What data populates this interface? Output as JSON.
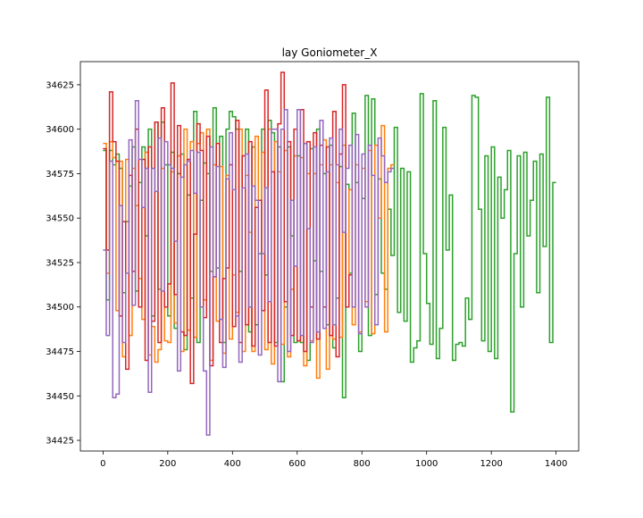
{
  "chart_data": {
    "type": "line",
    "title": "lay Goniometer_X",
    "xlabel": "",
    "ylabel": "",
    "xlim": [
      -70,
      1470
    ],
    "ylim": [
      34419,
      34438
    ],
    "ylim_note": "",
    "x_ticks": [
      0,
      200,
      400,
      600,
      800,
      1000,
      1200,
      1400
    ],
    "y_ticks": [
      34425,
      34450,
      34475,
      34500,
      34525,
      34550,
      34575,
      34600,
      34625
    ],
    "grid": false,
    "legend": "none",
    "series": [
      {
        "color": "#2ca02c",
        "x": [
          0,
          10,
          20,
          30,
          40,
          50,
          60,
          70,
          80,
          90,
          100,
          110,
          120,
          130,
          140,
          150,
          160,
          170,
          180,
          190,
          200,
          210,
          220,
          230,
          240,
          250,
          260,
          270,
          280,
          290,
          300,
          310,
          320,
          330,
          340,
          350,
          360,
          370,
          380,
          390,
          400,
          410,
          420,
          430,
          440,
          450,
          460,
          470,
          480,
          490,
          500,
          510,
          520,
          530,
          540,
          550,
          560,
          570,
          580,
          590,
          600,
          610,
          620,
          630,
          640,
          650,
          660,
          670,
          680,
          690,
          700,
          710,
          720,
          730,
          740,
          750,
          760,
          770,
          780,
          790,
          800,
          810,
          820,
          830,
          840,
          850,
          860,
          870,
          880,
          890,
          900,
          910,
          920,
          930,
          940,
          950,
          960,
          970,
          980,
          990,
          1000,
          1010,
          1020,
          1030,
          1040,
          1050,
          1060,
          1070,
          1080,
          1090,
          1100,
          1110,
          1120,
          1130,
          1140,
          1150,
          1160,
          1170,
          1180,
          1190,
          1200,
          1210,
          1220,
          1230,
          1240,
          1250,
          1260,
          1270,
          1280,
          1290,
          1300,
          1310,
          1320,
          1330,
          1340,
          1350,
          1360,
          1370,
          1380,
          1390
        ],
        "y": [
          34588,
          34504,
          34588,
          34580,
          34586,
          34578,
          34508,
          34548,
          34568,
          34590,
          34509,
          34570,
          34590,
          34540,
          34600,
          34495,
          34604,
          34510,
          34604,
          34580,
          34495,
          34587,
          34488,
          34575,
          34586,
          34476,
          34563,
          34505,
          34610,
          34480,
          34560,
          34581,
          34575,
          34520,
          34612,
          34522,
          34596,
          34480,
          34600,
          34610,
          34607,
          34600,
          34520,
          34585,
          34600,
          34486,
          34590,
          34490,
          34530,
          34600,
          34518,
          34605,
          34598,
          34480,
          34590,
          34458,
          34500,
          34590,
          34540,
          34480,
          34585,
          34480,
          34592,
          34470,
          34589,
          34526,
          34600,
          34520,
          34575,
          34490,
          34591,
          34477,
          34505,
          34579,
          34449,
          34569,
          34519,
          34609,
          34570,
          34475,
          34561,
          34619,
          34484,
          34617,
          34507,
          34572,
          34519,
          34510,
          34555,
          34529,
          34601,
          34497,
          34578,
          34492,
          34576,
          34469,
          34477,
          34481,
          34620,
          34530,
          34502,
          34479,
          34616,
          34471,
          34488,
          34601,
          34532,
          34563,
          34470,
          34479,
          34480,
          34478,
          34505,
          34493,
          34619,
          34618,
          34555,
          34481,
          34585,
          34475,
          34590,
          34471,
          34573,
          34550,
          34566,
          34588,
          34441,
          34530,
          34585,
          34500,
          34587,
          34540,
          34560,
          34582,
          34508,
          34586,
          34534,
          34618,
          34480,
          34570
        ]
      },
      {
        "color": "#ff7f0e",
        "x": [
          0,
          10,
          20,
          30,
          40,
          50,
          60,
          70,
          80,
          90,
          100,
          110,
          120,
          130,
          140,
          150,
          160,
          170,
          180,
          190,
          200,
          210,
          220,
          230,
          240,
          250,
          260,
          270,
          280,
          290,
          300,
          310,
          320,
          330,
          340,
          350,
          360,
          370,
          380,
          390,
          400,
          410,
          420,
          430,
          440,
          450,
          460,
          470,
          480,
          490,
          500,
          510,
          520,
          530,
          540,
          550,
          560,
          570,
          580,
          590,
          600,
          610,
          620,
          630,
          640,
          650,
          660,
          670,
          680,
          690,
          700,
          710,
          720,
          730,
          740,
          750,
          760,
          770,
          780,
          790,
          800,
          810,
          820,
          830,
          840,
          850,
          860,
          870,
          880,
          890
        ],
        "y": [
          34592,
          34519,
          34593,
          34584,
          34498,
          34582,
          34472,
          34583,
          34484,
          34578,
          34557,
          34516,
          34493,
          34587,
          34473,
          34489,
          34469,
          34476,
          34578,
          34481,
          34480,
          34576,
          34491,
          34585,
          34475,
          34600,
          34487,
          34593,
          34483,
          34592,
          34598,
          34504,
          34600,
          34470,
          34580,
          34492,
          34579,
          34474,
          34574,
          34482,
          34518,
          34497,
          34600,
          34475,
          34574,
          34542,
          34475,
          34596,
          34560,
          34587,
          34476,
          34600,
          34468,
          34593,
          34576,
          34479,
          34588,
          34472,
          34510,
          34585,
          34481,
          34584,
          34467,
          34575,
          34481,
          34575,
          34460,
          34580,
          34594,
          34465,
          34580,
          34482,
          34570,
          34483,
          34591,
          34500,
          34566,
          34490,
          34580,
          34486,
          34578,
          34503,
          34588,
          34485,
          34591,
          34550,
          34602,
          34486,
          34578,
          34580
        ]
      },
      {
        "color": "#d62728",
        "x": [
          0,
          10,
          20,
          30,
          40,
          50,
          60,
          70,
          80,
          90,
          100,
          110,
          120,
          130,
          140,
          150,
          160,
          170,
          180,
          190,
          200,
          210,
          220,
          230,
          240,
          250,
          260,
          270,
          280,
          290,
          300,
          310,
          320,
          330,
          340,
          350,
          360,
          370,
          380,
          390,
          400,
          410,
          420,
          430,
          440,
          450,
          460,
          470,
          480,
          490,
          500,
          510,
          520,
          530,
          540,
          550,
          560,
          570,
          580,
          590,
          600,
          610,
          620,
          630,
          640,
          650,
          660,
          670,
          680,
          690,
          700,
          710,
          720,
          730,
          740,
          750,
          760
        ],
        "y": [
          34589,
          34532,
          34621,
          34593,
          34582,
          34495,
          34548,
          34465,
          34574,
          34520,
          34600,
          34500,
          34583,
          34470,
          34590,
          34492,
          34604,
          34480,
          34612,
          34500,
          34513,
          34626,
          34507,
          34602,
          34486,
          34484,
          34583,
          34457,
          34541,
          34603,
          34588,
          34494,
          34596,
          34467,
          34517,
          34592,
          34480,
          34516,
          34522,
          34580,
          34489,
          34605,
          34480,
          34585,
          34490,
          34593,
          34478,
          34556,
          34560,
          34498,
          34622,
          34480,
          34576,
          34478,
          34603,
          34632,
          34503,
          34593,
          34484,
          34600,
          34481,
          34611,
          34475,
          34593,
          34500,
          34598,
          34482,
          34591,
          34500,
          34590,
          34484,
          34610,
          34472,
          34586,
          34625,
          34500,
          34518
        ]
      },
      {
        "color": "#9467bd",
        "x": [
          0,
          10,
          20,
          30,
          40,
          50,
          60,
          70,
          80,
          90,
          100,
          110,
          120,
          130,
          140,
          150,
          160,
          170,
          180,
          190,
          200,
          210,
          220,
          230,
          240,
          250,
          260,
          270,
          280,
          290,
          300,
          310,
          320,
          330,
          340,
          350,
          360,
          370,
          380,
          390,
          400,
          410,
          420,
          430,
          440,
          450,
          460,
          470,
          480,
          490,
          500,
          510,
          520,
          530,
          540,
          550,
          560,
          570,
          580,
          590,
          600,
          610,
          620,
          630,
          640,
          650,
          660,
          670,
          680,
          690,
          700,
          710,
          720,
          730,
          740,
          750,
          760,
          770,
          780,
          790,
          800,
          810,
          820,
          830,
          840,
          850,
          860,
          870,
          880,
          890
        ],
        "y": [
          34532,
          34484,
          34582,
          34449,
          34451,
          34557,
          34480,
          34519,
          34594,
          34501,
          34616,
          34583,
          34556,
          34578,
          34452,
          34578,
          34565,
          34595,
          34509,
          34593,
          34580,
          34578,
          34537,
          34464,
          34573,
          34580,
          34582,
          34588,
          34564,
          34587,
          34500,
          34464,
          34428,
          34590,
          34517,
          34579,
          34493,
          34466,
          34572,
          34598,
          34566,
          34495,
          34469,
          34567,
          34586,
          34500,
          34568,
          34560,
          34473,
          34530,
          34567,
          34503,
          34600,
          34600,
          34458,
          34600,
          34611,
          34475,
          34560,
          34523,
          34611,
          34484,
          34592,
          34544,
          34480,
          34590,
          34486,
          34605,
          34488,
          34576,
          34595,
          34490,
          34580,
          34600,
          34542,
          34578,
          34591,
          34500,
          34597,
          34485,
          34586,
          34500,
          34591,
          34574,
          34490,
          34595,
          34585,
          34570,
          34576,
          34578
        ]
      }
    ]
  }
}
